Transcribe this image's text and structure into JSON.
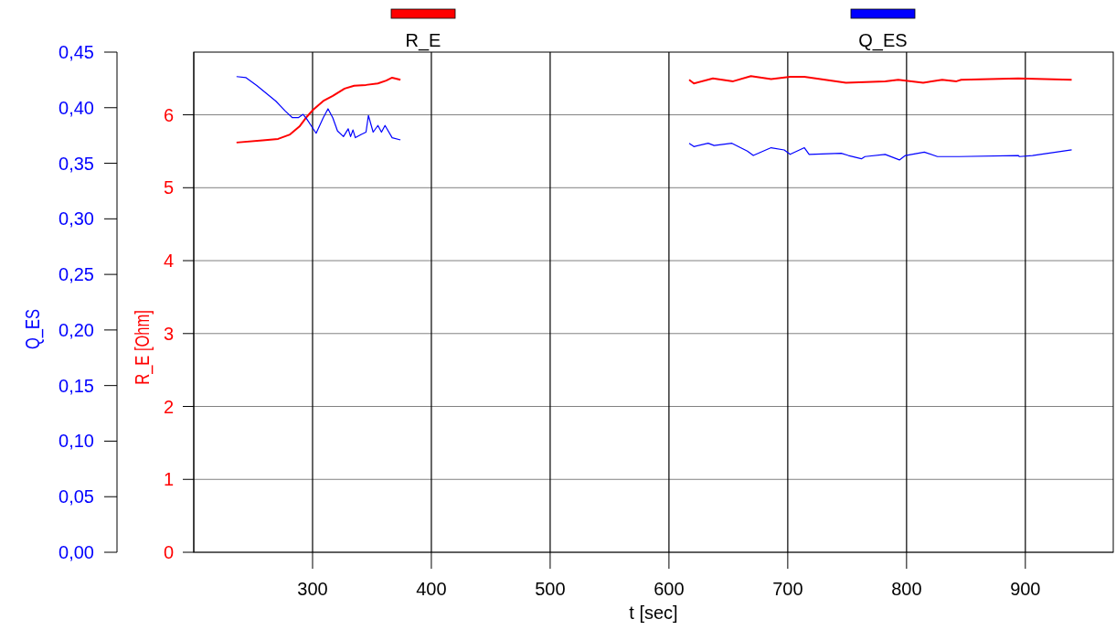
{
  "chart_data": {
    "type": "line",
    "xlabel": "t [sec]",
    "ylabel": "R_E [Ohm]",
    "y2label": "Q_ES",
    "xlim": [
      200,
      974
    ],
    "xticks": [
      300,
      400,
      500,
      600,
      700,
      800,
      900
    ],
    "ylim": [
      0,
      6.86
    ],
    "yticks": [
      0,
      1,
      2,
      3,
      4,
      5,
      6
    ],
    "y2lim": [
      0,
      0.45
    ],
    "y2ticks": [
      {
        "value": 0,
        "label": "0,00"
      },
      {
        "value": 0.05,
        "label": "0,05"
      },
      {
        "value": 0.1,
        "label": "0,10"
      },
      {
        "value": 0.15,
        "label": "0,15"
      },
      {
        "value": 0.2,
        "label": "0,20"
      },
      {
        "value": 0.25,
        "label": "0,25"
      },
      {
        "value": 0.3,
        "label": "0,30"
      },
      {
        "value": 0.35,
        "label": "0,35"
      },
      {
        "value": 0.4,
        "label": "0,40"
      },
      {
        "value": 0.45,
        "label": "0,45"
      }
    ],
    "grid": true,
    "legend": "top",
    "series": [
      {
        "name": "R_E",
        "color": "#ff0000",
        "x": [
          236,
          258,
          271,
          281,
          289,
          295,
          300.5,
          309,
          317,
          327,
          335,
          345,
          355,
          362,
          367,
          374,
          500,
          617,
          621,
          637,
          654,
          669,
          686,
          702,
          714,
          749,
          782,
          793,
          814,
          830,
          842,
          846,
          894,
          939
        ],
        "values": [
          5.62,
          5.65,
          5.67,
          5.73,
          5.84,
          5.97,
          6.07,
          6.19,
          6.26,
          6.36,
          6.4,
          6.41,
          6.43,
          6.47,
          6.51,
          6.48,
          null,
          6.48,
          6.43,
          6.5,
          6.46,
          6.53,
          6.49,
          6.52,
          6.52,
          6.44,
          6.46,
          6.48,
          6.44,
          6.48,
          6.46,
          6.48,
          6.5,
          6.48
        ]
      },
      {
        "name": "Q_ES",
        "color": "#0000ff",
        "axis": "y2",
        "x": [
          236,
          244,
          253,
          261,
          269,
          277,
          283,
          288,
          292,
          295,
          303,
          309,
          313,
          317,
          321,
          326,
          330,
          332,
          334,
          336,
          341,
          345,
          347,
          351,
          355,
          358,
          361,
          367,
          374,
          500,
          617,
          621,
          633,
          638,
          653,
          666,
          671,
          686,
          697,
          702,
          714,
          718,
          745,
          751,
          762,
          765,
          782,
          794,
          799,
          815,
          826,
          844,
          894,
          895,
          906,
          939
        ],
        "values": [
          0.428,
          0.427,
          0.42,
          0.413,
          0.406,
          0.397,
          0.391,
          0.391,
          0.394,
          0.39,
          0.377,
          0.391,
          0.399,
          0.391,
          0.379,
          0.374,
          0.381,
          0.374,
          0.38,
          0.373,
          0.376,
          0.378,
          0.393,
          0.378,
          0.384,
          0.378,
          0.384,
          0.373,
          0.371,
          null,
          0.368,
          0.365,
          0.368,
          0.366,
          0.368,
          0.361,
          0.357,
          0.364,
          0.362,
          0.358,
          0.364,
          0.358,
          0.359,
          0.357,
          0.354,
          0.356,
          0.358,
          0.353,
          0.357,
          0.36,
          0.356,
          0.356,
          0.357,
          0.356,
          0.357,
          0.362
        ]
      }
    ]
  }
}
